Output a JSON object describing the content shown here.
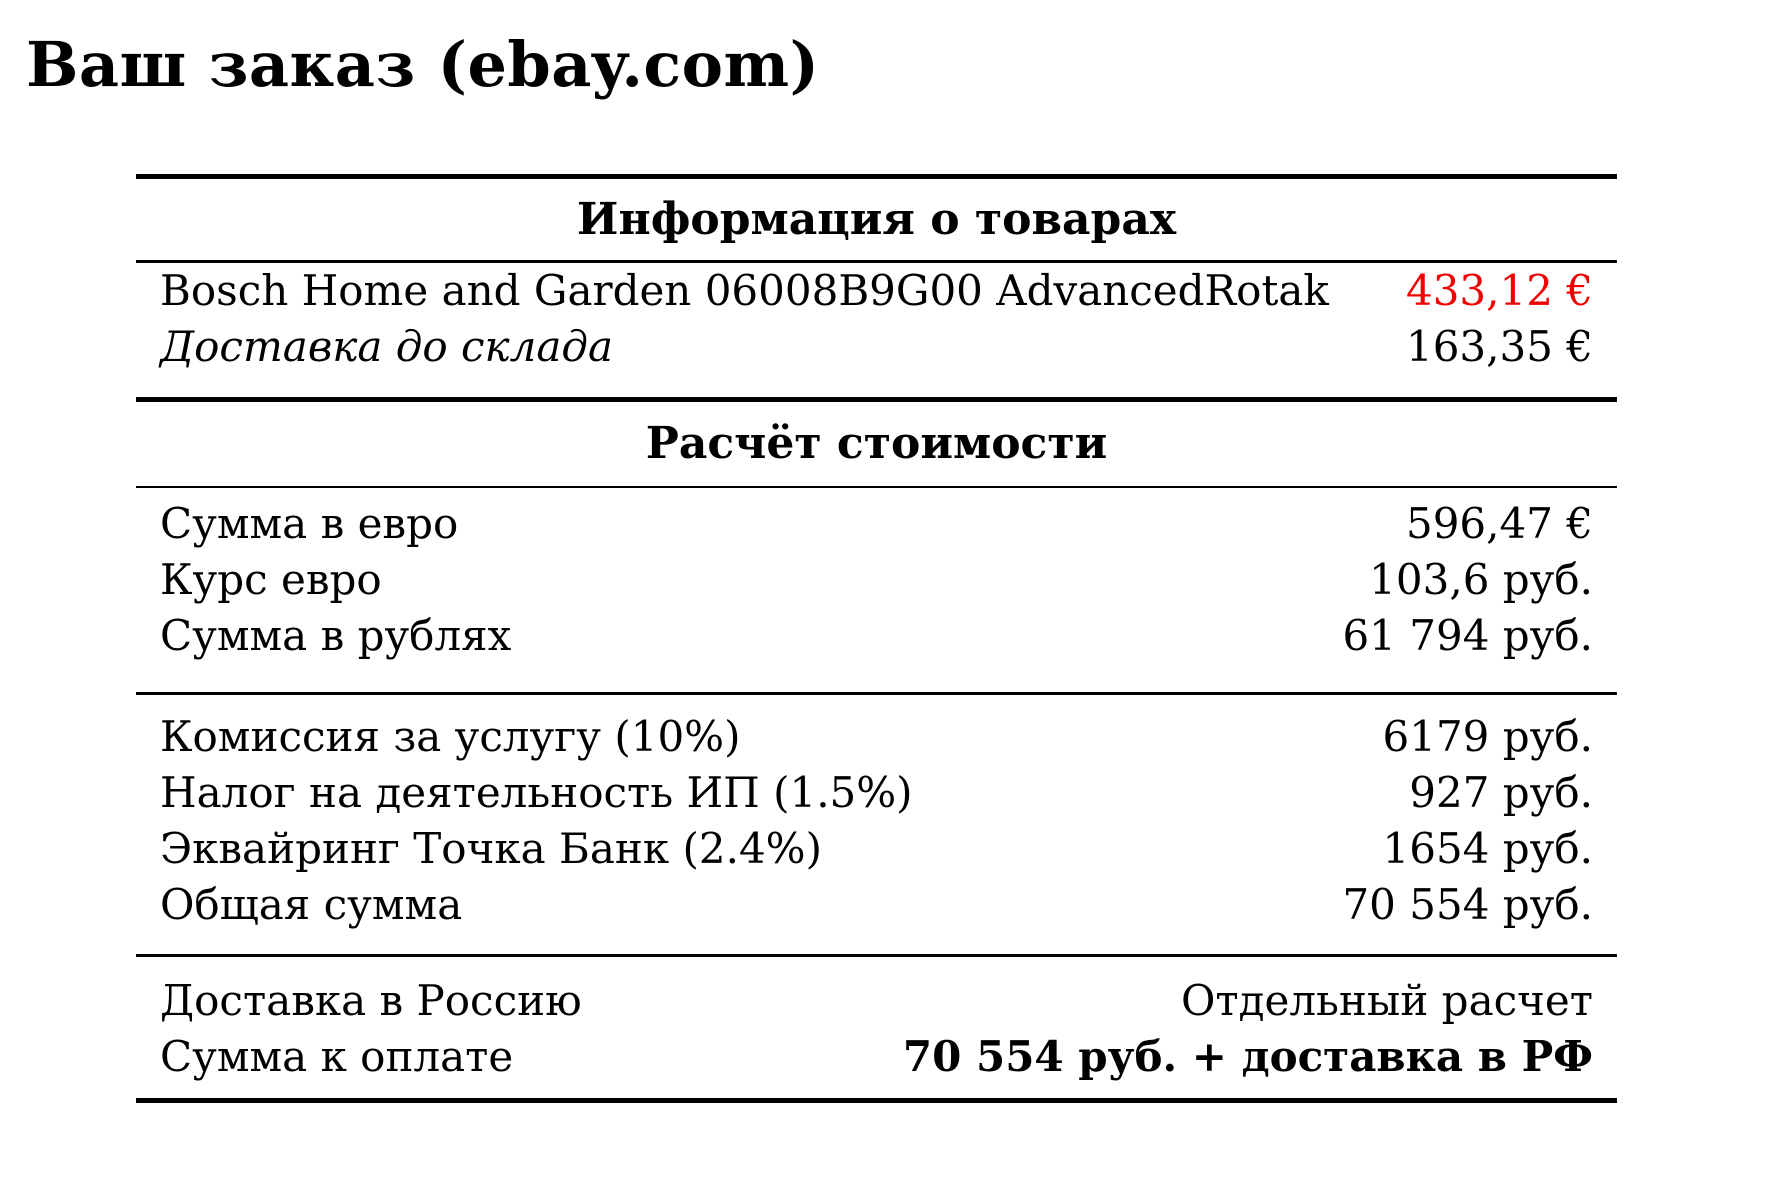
{
  "title": "Ваш заказ (ebay.com)",
  "colors": {
    "background": "#ffffff",
    "text": "#000000",
    "highlight_price_red": "#f00000"
  },
  "table": {
    "items_section": {
      "header": "Информация о товарах",
      "rows": [
        {
          "label": "Bosch Home and Garden 06008B9G00 AdvancedRotak",
          "value": "433,12 €"
        },
        {
          "label": "Доставка до склада",
          "value": "163,35 €"
        }
      ]
    },
    "calc_section": {
      "header": "Расчёт стоимости",
      "totals_eur": [
        {
          "label": "Сумма в евро",
          "value": "596,47 €"
        },
        {
          "label": "Курс евро",
          "value": "103,6 руб."
        },
        {
          "label": "Сумма в рублях",
          "value": "61 794 руб."
        }
      ],
      "fees": [
        {
          "label": "Комиссия за услугу (10%)",
          "value": "6179 руб."
        },
        {
          "label": "Налог на деятельность ИП (1.5%)",
          "value": "927 руб."
        },
        {
          "label": "Эквайринг Точка Банк (2.4%)",
          "value": "1654 руб."
        },
        {
          "label": "Общая сумма",
          "value": "70 554 руб."
        }
      ],
      "final": [
        {
          "label": "Доставка в Россию",
          "value": "Отдельный расчет"
        },
        {
          "label": "Сумма к оплате",
          "value": "70 554 руб. + доставка в РФ"
        }
      ]
    }
  }
}
